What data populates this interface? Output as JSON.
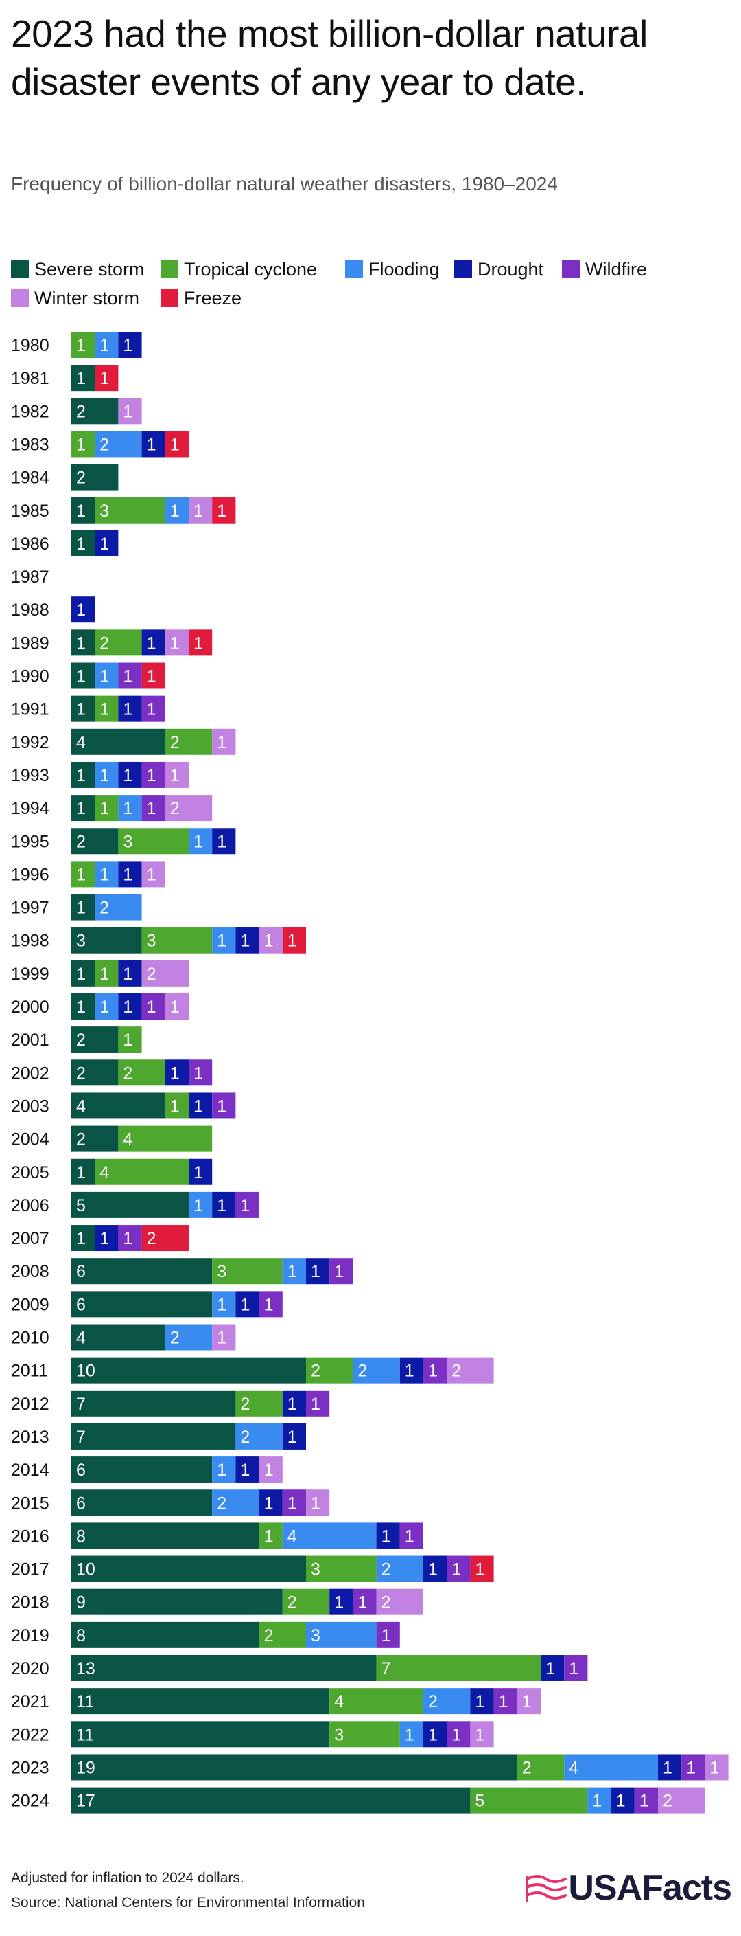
{
  "title": "2023 had the most billion-dollar natural disaster events of any year to date.",
  "subtitle": "Frequency of billion-dollar natural weather disasters, 1980–2024",
  "colors": {
    "severe_storm": "#0a5445",
    "tropical_cyclone": "#4ea72e",
    "flooding": "#3a8bf0",
    "drought": "#0c1aa6",
    "wildfire": "#7b2fc3",
    "winter_storm": "#c182e2",
    "freeze": "#e01b3c"
  },
  "legend": [
    {
      "key": "severe_storm",
      "label": "Severe storm"
    },
    {
      "key": "tropical_cyclone",
      "label": "Tropical cyclone"
    },
    {
      "key": "flooding",
      "label": "Flooding"
    },
    {
      "key": "drought",
      "label": "Drought"
    },
    {
      "key": "wildfire",
      "label": "Wildfire"
    },
    {
      "key": "winter_storm",
      "label": "Winter storm"
    },
    {
      "key": "freeze",
      "label": "Freeze"
    }
  ],
  "chart_data": {
    "type": "bar",
    "orientation": "horizontal",
    "stacked": true,
    "categories": [
      "1980",
      "1981",
      "1982",
      "1983",
      "1984",
      "1985",
      "1986",
      "1987",
      "1988",
      "1989",
      "1990",
      "1991",
      "1992",
      "1993",
      "1994",
      "1995",
      "1996",
      "1997",
      "1998",
      "1999",
      "2000",
      "2001",
      "2002",
      "2003",
      "2004",
      "2005",
      "2006",
      "2007",
      "2008",
      "2009",
      "2010",
      "2011",
      "2012",
      "2013",
      "2014",
      "2015",
      "2016",
      "2017",
      "2018",
      "2019",
      "2020",
      "2021",
      "2022",
      "2023",
      "2024"
    ],
    "series": [
      {
        "key": "severe_storm",
        "name": "Severe storm",
        "values": [
          0,
          1,
          2,
          0,
          2,
          1,
          1,
          0,
          0,
          1,
          1,
          1,
          4,
          1,
          1,
          2,
          0,
          1,
          3,
          1,
          1,
          2,
          2,
          4,
          2,
          1,
          5,
          1,
          6,
          6,
          4,
          10,
          7,
          7,
          6,
          6,
          8,
          10,
          9,
          8,
          13,
          11,
          11,
          19,
          17
        ]
      },
      {
        "key": "tropical_cyclone",
        "name": "Tropical cyclone",
        "values": [
          1,
          0,
          0,
          1,
          0,
          3,
          0,
          0,
          0,
          2,
          0,
          1,
          2,
          0,
          1,
          3,
          1,
          0,
          3,
          1,
          0,
          1,
          2,
          1,
          4,
          4,
          0,
          0,
          3,
          0,
          0,
          2,
          2,
          0,
          0,
          0,
          1,
          3,
          2,
          2,
          7,
          4,
          3,
          2,
          5
        ]
      },
      {
        "key": "flooding",
        "name": "Flooding",
        "values": [
          1,
          0,
          0,
          2,
          0,
          1,
          0,
          0,
          0,
          0,
          1,
          0,
          0,
          1,
          1,
          1,
          1,
          2,
          1,
          0,
          1,
          0,
          0,
          0,
          0,
          0,
          1,
          0,
          1,
          1,
          2,
          2,
          0,
          2,
          1,
          2,
          4,
          2,
          0,
          3,
          0,
          2,
          1,
          4,
          1
        ]
      },
      {
        "key": "drought",
        "name": "Drought",
        "values": [
          1,
          0,
          0,
          1,
          0,
          0,
          1,
          0,
          1,
          1,
          0,
          1,
          0,
          1,
          0,
          1,
          1,
          0,
          1,
          1,
          1,
          0,
          1,
          1,
          0,
          1,
          1,
          1,
          1,
          1,
          0,
          1,
          1,
          1,
          1,
          1,
          1,
          1,
          1,
          0,
          1,
          1,
          1,
          1,
          1
        ]
      },
      {
        "key": "wildfire",
        "name": "Wildfire",
        "values": [
          0,
          0,
          0,
          0,
          0,
          0,
          0,
          0,
          0,
          0,
          1,
          1,
          0,
          1,
          1,
          0,
          0,
          0,
          0,
          0,
          1,
          0,
          1,
          1,
          0,
          0,
          1,
          1,
          1,
          1,
          0,
          1,
          1,
          0,
          0,
          1,
          1,
          1,
          1,
          1,
          1,
          1,
          1,
          1,
          1
        ]
      },
      {
        "key": "winter_storm",
        "name": "Winter storm",
        "values": [
          0,
          0,
          1,
          0,
          0,
          1,
          0,
          0,
          0,
          1,
          0,
          0,
          1,
          1,
          2,
          0,
          1,
          0,
          1,
          2,
          1,
          0,
          0,
          0,
          0,
          0,
          0,
          0,
          0,
          0,
          1,
          2,
          0,
          0,
          1,
          1,
          0,
          0,
          2,
          0,
          0,
          1,
          1,
          1,
          2
        ]
      },
      {
        "key": "freeze",
        "name": "Freeze",
        "values": [
          0,
          1,
          0,
          1,
          0,
          1,
          0,
          0,
          0,
          1,
          1,
          0,
          0,
          0,
          0,
          0,
          0,
          0,
          1,
          0,
          0,
          0,
          0,
          0,
          0,
          0,
          0,
          2,
          0,
          0,
          0,
          0,
          0,
          0,
          0,
          0,
          0,
          1,
          0,
          0,
          0,
          0,
          0,
          0,
          0
        ]
      }
    ],
    "xlim": [
      0,
      28
    ],
    "grid": false,
    "legend_position": "top"
  },
  "footer": {
    "note": "Adjusted for inflation to 2024 dollars.",
    "source": "Source: National Centers for Environmental Information"
  },
  "logo_text": "USAFacts"
}
